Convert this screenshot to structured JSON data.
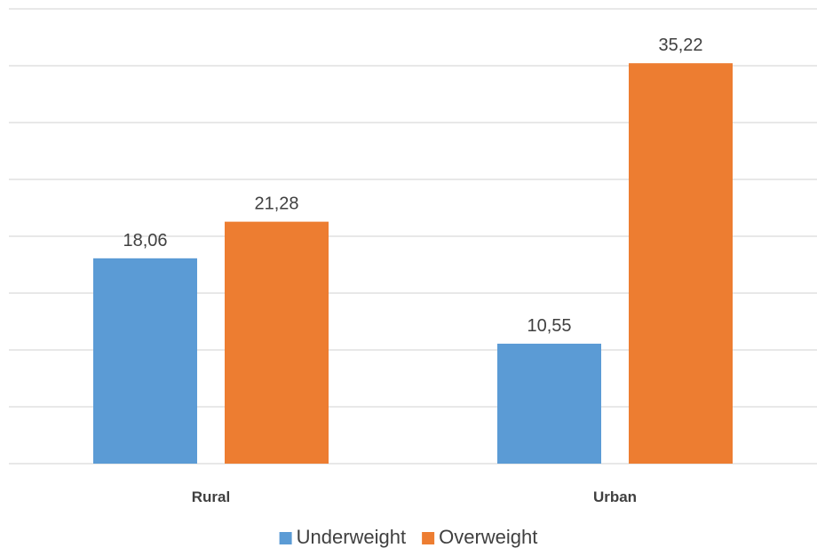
{
  "chart_data": {
    "type": "bar",
    "categories": [
      "Rural",
      "Urban"
    ],
    "series": [
      {
        "name": "Underweight",
        "color": "#5b9bd5",
        "values": [
          18.06,
          10.55
        ],
        "labels": [
          "18,06",
          "10,55"
        ]
      },
      {
        "name": "Overweight",
        "color": "#ed7d31",
        "values": [
          21.28,
          35.22
        ],
        "labels": [
          "21,28",
          "35,22"
        ]
      }
    ],
    "title": "",
    "xlabel": "",
    "ylabel": "",
    "ylim": [
      0,
      40
    ],
    "yticks": [
      0,
      5,
      10,
      15,
      20,
      25,
      30,
      35,
      40
    ],
    "grid": true,
    "legend": "bottom-center"
  }
}
